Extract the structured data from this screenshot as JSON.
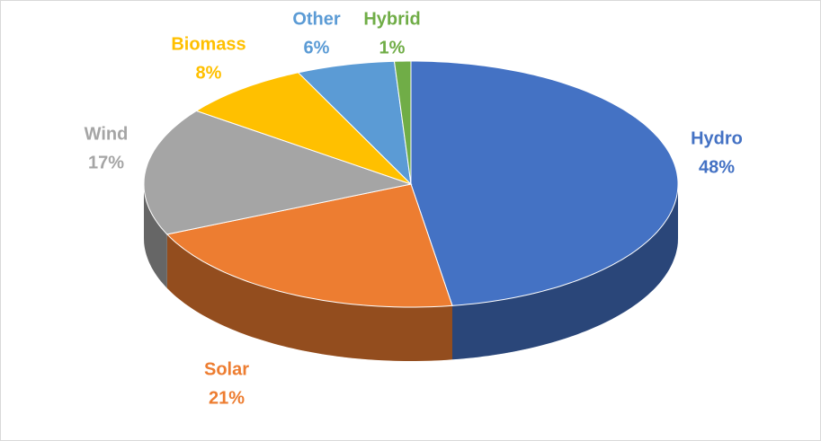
{
  "chart_data": {
    "type": "pie",
    "categories": [
      "Hydro",
      "Solar",
      "Wind",
      "Biomass",
      "Other",
      "Hybrid"
    ],
    "values": [
      48,
      21,
      17,
      8,
      6,
      1
    ],
    "value_labels": [
      "48%",
      "21%",
      "17%",
      "8%",
      "6%",
      "1%"
    ],
    "colors": [
      "#4472c4",
      "#ed7d31",
      "#a5a5a5",
      "#ffc000",
      "#5b9bd5",
      "#70ad47"
    ]
  }
}
